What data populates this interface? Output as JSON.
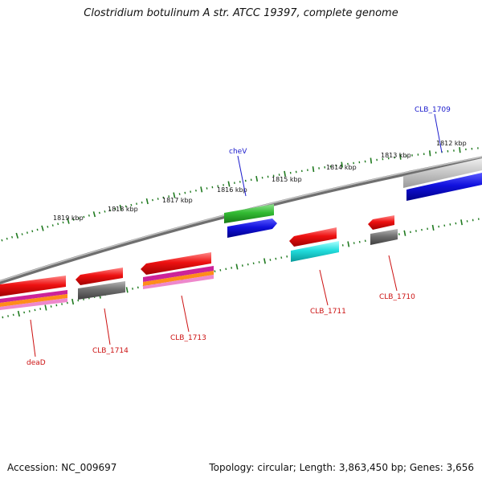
{
  "title": "Clostridium botulinum A str. ATCC 19397, complete genome",
  "footer": {
    "accession": "Accession: NC_009697",
    "topology": "Topology: circular; Length: 3,863,450 bp; Genes: 3,656"
  },
  "colors": {
    "backbone": "#8a8a8a",
    "tick": "#1f7a1f",
    "label_forward": "#1a1acc",
    "label_reverse": "#cc1111",
    "gene_red": "#ee1111",
    "gene_blue": "#1111dd",
    "gene_green": "#33bb33",
    "gene_cyan": "#22dddd",
    "gene_gray": "#777777",
    "gene_lightgray": "#c8c8c8",
    "gene_magenta": "#cc2299",
    "gene_orange": "#ff8c1a",
    "gene_pink": "#ee88cc"
  },
  "ruler": {
    "labels": [
      "1812 kbp",
      "1813 kbp",
      "1814 kbp",
      "1815 kbp",
      "1816 kbp",
      "1817 kbp",
      "1818 kbp",
      "1819 kbp"
    ]
  },
  "genes": [
    {
      "label": "CLB_1709",
      "strand": "forward"
    },
    {
      "label": "cheV",
      "strand": "forward"
    },
    {
      "label": "CLB_1710",
      "strand": "reverse"
    },
    {
      "label": "CLB_1711",
      "strand": "reverse"
    },
    {
      "label": "CLB_1713",
      "strand": "reverse"
    },
    {
      "label": "CLB_1714",
      "strand": "reverse"
    },
    {
      "label": "deaD",
      "strand": "reverse"
    }
  ]
}
